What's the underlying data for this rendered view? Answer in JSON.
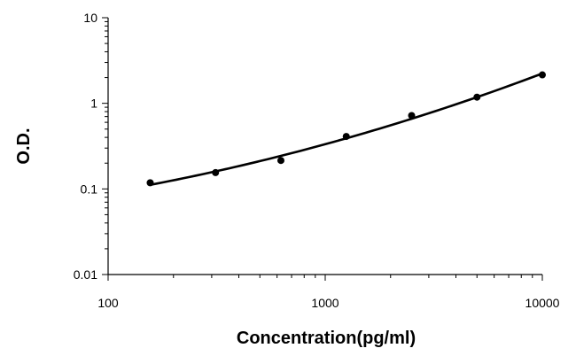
{
  "chart_data": {
    "type": "scatter",
    "title": "",
    "xlabel": "Concentration(pg/ml)",
    "ylabel": "O.D.",
    "x_scale": "log",
    "y_scale": "log",
    "xlim": [
      100,
      10000
    ],
    "ylim": [
      0.01,
      10
    ],
    "x_ticks": [
      "100",
      "1000",
      "10000"
    ],
    "y_ticks": [
      "0.01",
      "0.1",
      "1",
      "10"
    ],
    "grid": false,
    "legend": "none",
    "series": [
      {
        "x": [
          156.25,
          312.5,
          625,
          1250,
          2500,
          5000,
          10000
        ],
        "y": [
          0.118,
          0.155,
          0.215,
          0.41,
          0.72,
          1.18,
          2.15
        ],
        "marker": "circle",
        "fit_line": true,
        "color": "#000000"
      }
    ]
  }
}
